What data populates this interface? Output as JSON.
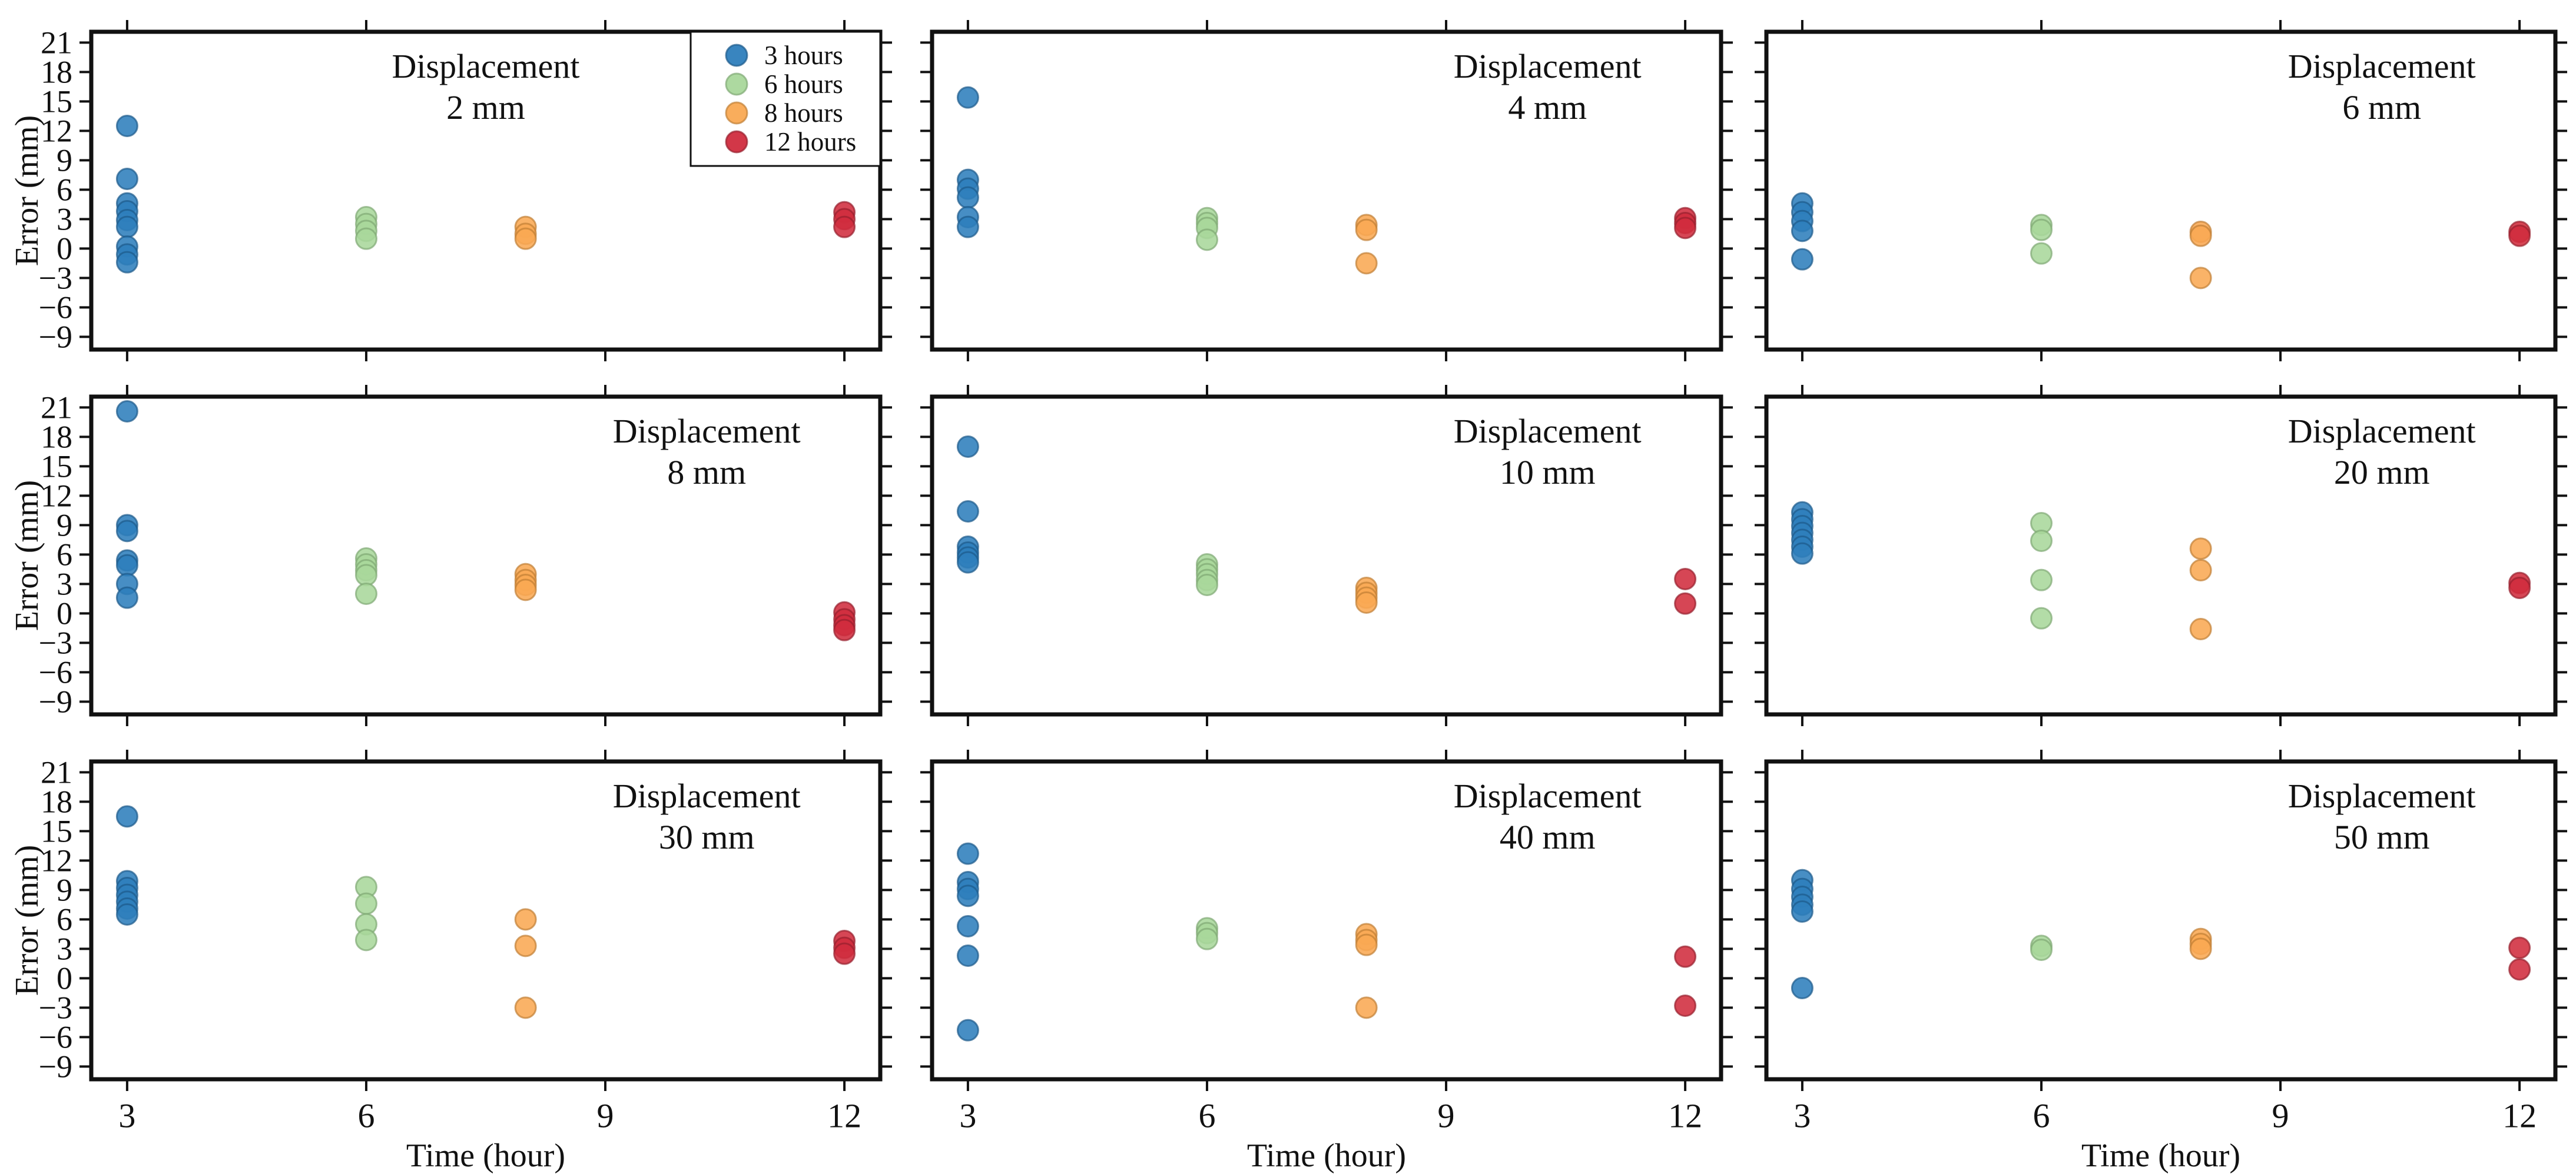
{
  "figure": {
    "ylabel": "Error (mm)",
    "xlabel": "Time (hour)",
    "x_ticks": [
      3,
      6,
      9,
      12
    ],
    "y_ticks": [
      -9,
      -6,
      -3,
      0,
      3,
      6,
      9,
      12,
      15,
      18,
      21
    ],
    "xlim": [
      2.55,
      12.45
    ],
    "ylim": [
      -10.3,
      22.1
    ],
    "frame_color": "#111111",
    "colors": {
      "3 hours": {
        "fill": "#2e7ebc",
        "edge": "#1c5a8a"
      },
      "6 hours": {
        "fill": "#a9d79b",
        "edge": "#7fa874"
      },
      "8 hours": {
        "fill": "#f9a953",
        "edge": "#c07f35"
      },
      "12 hours": {
        "fill": "#d02c3e",
        "edge": "#971f2e"
      }
    },
    "legend": {
      "items": [
        "3 hours",
        "6 hours",
        "8 hours",
        "12 hours"
      ],
      "position": "top-right-of-first-subplot"
    }
  },
  "chart_data": [
    {
      "type": "scatter",
      "title_line1": "Displacement",
      "title_line2": "2 mm",
      "title_anchor": 0.5,
      "show_legend": true,
      "series": [
        {
          "name": "3 hours",
          "x": 3,
          "y": [
            12.5,
            7.1,
            4.6,
            3.8,
            2.9,
            2.2,
            0.2,
            -0.6,
            -1.4
          ]
        },
        {
          "name": "6 hours",
          "x": 6,
          "y": [
            3.2,
            2.5,
            1.8,
            1.0
          ]
        },
        {
          "name": "8 hours",
          "x": 8,
          "y": [
            2.2,
            1.5,
            1.0
          ]
        },
        {
          "name": "12 hours",
          "x": 12,
          "y": [
            3.7,
            3.0,
            2.2
          ]
        }
      ]
    },
    {
      "type": "scatter",
      "title_line1": "Displacement",
      "title_line2": "4 mm",
      "title_anchor": 0.78,
      "show_legend": false,
      "series": [
        {
          "name": "3 hours",
          "x": 3,
          "y": [
            15.4,
            7.0,
            6.1,
            5.2,
            3.2,
            2.2
          ]
        },
        {
          "name": "6 hours",
          "x": 6,
          "y": [
            3.1,
            2.6,
            2.1,
            0.9
          ]
        },
        {
          "name": "8 hours",
          "x": 8,
          "y": [
            2.4,
            1.9,
            -1.5
          ]
        },
        {
          "name": "12 hours",
          "x": 12,
          "y": [
            3.1,
            2.6,
            2.1
          ]
        }
      ]
    },
    {
      "type": "scatter",
      "title_line1": "Displacement",
      "title_line2": "6 mm",
      "title_anchor": 0.78,
      "show_legend": false,
      "series": [
        {
          "name": "3 hours",
          "x": 3,
          "y": [
            4.6,
            3.7,
            2.8,
            1.8,
            -1.1
          ]
        },
        {
          "name": "6 hours",
          "x": 6,
          "y": [
            2.4,
            1.9,
            -0.5
          ]
        },
        {
          "name": "8 hours",
          "x": 8,
          "y": [
            1.7,
            1.3,
            -3.0
          ]
        },
        {
          "name": "12 hours",
          "x": 12,
          "y": [
            1.7,
            1.3
          ]
        }
      ]
    },
    {
      "type": "scatter",
      "title_line1": "Displacement",
      "title_line2": "8 mm",
      "title_anchor": 0.78,
      "show_legend": false,
      "series": [
        {
          "name": "3 hours",
          "x": 3,
          "y": [
            20.6,
            9.0,
            8.4,
            5.4,
            4.9,
            3.0,
            1.6
          ]
        },
        {
          "name": "6 hours",
          "x": 6,
          "y": [
            5.6,
            5.0,
            4.4,
            3.9,
            2.0
          ]
        },
        {
          "name": "8 hours",
          "x": 8,
          "y": [
            4.0,
            3.4,
            2.9,
            2.4
          ]
        },
        {
          "name": "12 hours",
          "x": 12,
          "y": [
            0.1,
            -0.6,
            -1.2,
            -1.7
          ]
        }
      ]
    },
    {
      "type": "scatter",
      "title_line1": "Displacement",
      "title_line2": "10 mm",
      "title_anchor": 0.78,
      "show_legend": false,
      "series": [
        {
          "name": "3 hours",
          "x": 3,
          "y": [
            17.0,
            10.4,
            6.8,
            6.2,
            5.7,
            5.2
          ]
        },
        {
          "name": "6 hours",
          "x": 6,
          "y": [
            5.0,
            4.5,
            4.0,
            3.4,
            2.9
          ]
        },
        {
          "name": "8 hours",
          "x": 8,
          "y": [
            2.6,
            2.1,
            1.6,
            1.1
          ]
        },
        {
          "name": "12 hours",
          "x": 12,
          "y": [
            3.5,
            1.0
          ]
        }
      ]
    },
    {
      "type": "scatter",
      "title_line1": "Displacement",
      "title_line2": "20 mm",
      "title_anchor": 0.78,
      "show_legend": false,
      "series": [
        {
          "name": "3 hours",
          "x": 3,
          "y": [
            10.3,
            9.6,
            8.9,
            8.2,
            7.5,
            6.8,
            6.1
          ]
        },
        {
          "name": "6 hours",
          "x": 6,
          "y": [
            9.2,
            7.4,
            3.4,
            -0.5
          ]
        },
        {
          "name": "8 hours",
          "x": 8,
          "y": [
            6.6,
            4.4,
            -1.6
          ]
        },
        {
          "name": "12 hours",
          "x": 12,
          "y": [
            3.1,
            2.6
          ]
        }
      ]
    },
    {
      "type": "scatter",
      "title_line1": "Displacement",
      "title_line2": "30 mm",
      "title_anchor": 0.78,
      "show_legend": false,
      "series": [
        {
          "name": "3 hours",
          "x": 3,
          "y": [
            16.5,
            9.9,
            9.2,
            8.5,
            7.8,
            7.1,
            6.5
          ]
        },
        {
          "name": "6 hours",
          "x": 6,
          "y": [
            9.3,
            7.6,
            5.5,
            3.9
          ]
        },
        {
          "name": "8 hours",
          "x": 8,
          "y": [
            6.0,
            3.3,
            -3.0
          ]
        },
        {
          "name": "12 hours",
          "x": 12,
          "y": [
            3.8,
            3.1,
            2.5
          ]
        }
      ]
    },
    {
      "type": "scatter",
      "title_line1": "Displacement",
      "title_line2": "40 mm",
      "title_anchor": 0.78,
      "show_legend": false,
      "series": [
        {
          "name": "3 hours",
          "x": 3,
          "y": [
            12.7,
            9.8,
            9.1,
            8.4,
            5.3,
            2.3,
            -5.3
          ]
        },
        {
          "name": "6 hours",
          "x": 6,
          "y": [
            5.1,
            4.6,
            4.0
          ]
        },
        {
          "name": "8 hours",
          "x": 8,
          "y": [
            4.5,
            3.9,
            3.4,
            -3.0
          ]
        },
        {
          "name": "12 hours",
          "x": 12,
          "y": [
            2.2,
            -2.8
          ]
        }
      ]
    },
    {
      "type": "scatter",
      "title_line1": "Displacement",
      "title_line2": "50 mm",
      "title_anchor": 0.78,
      "show_legend": false,
      "series": [
        {
          "name": "3 hours",
          "x": 3,
          "y": [
            10.0,
            9.1,
            8.3,
            7.5,
            6.8,
            -1.0
          ]
        },
        {
          "name": "6 hours",
          "x": 6,
          "y": [
            3.3,
            2.9
          ]
        },
        {
          "name": "8 hours",
          "x": 8,
          "y": [
            4.0,
            3.5,
            3.0
          ]
        },
        {
          "name": "12 hours",
          "x": 12,
          "y": [
            3.1,
            0.9
          ]
        }
      ]
    }
  ]
}
